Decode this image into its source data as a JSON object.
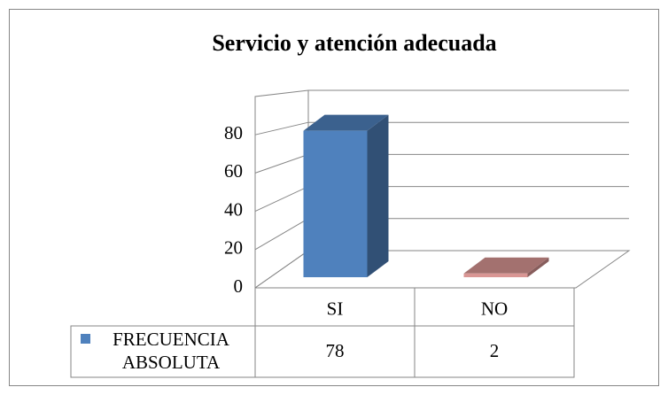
{
  "chart_data": {
    "type": "bar3d",
    "title": "Servicio y atención adecuada",
    "categories": [
      "SI",
      "NO"
    ],
    "series": [
      {
        "name": "FRECUENCIA ABSOLUTA",
        "color": "#4f81bd",
        "colors": [
          "#4f81bd",
          "#d99694"
        ],
        "values": [
          78,
          2
        ]
      }
    ],
    "ylim": [
      0,
      100
    ],
    "yticks": [
      0,
      20,
      40,
      60,
      80
    ],
    "grid": true,
    "data_table": true
  }
}
